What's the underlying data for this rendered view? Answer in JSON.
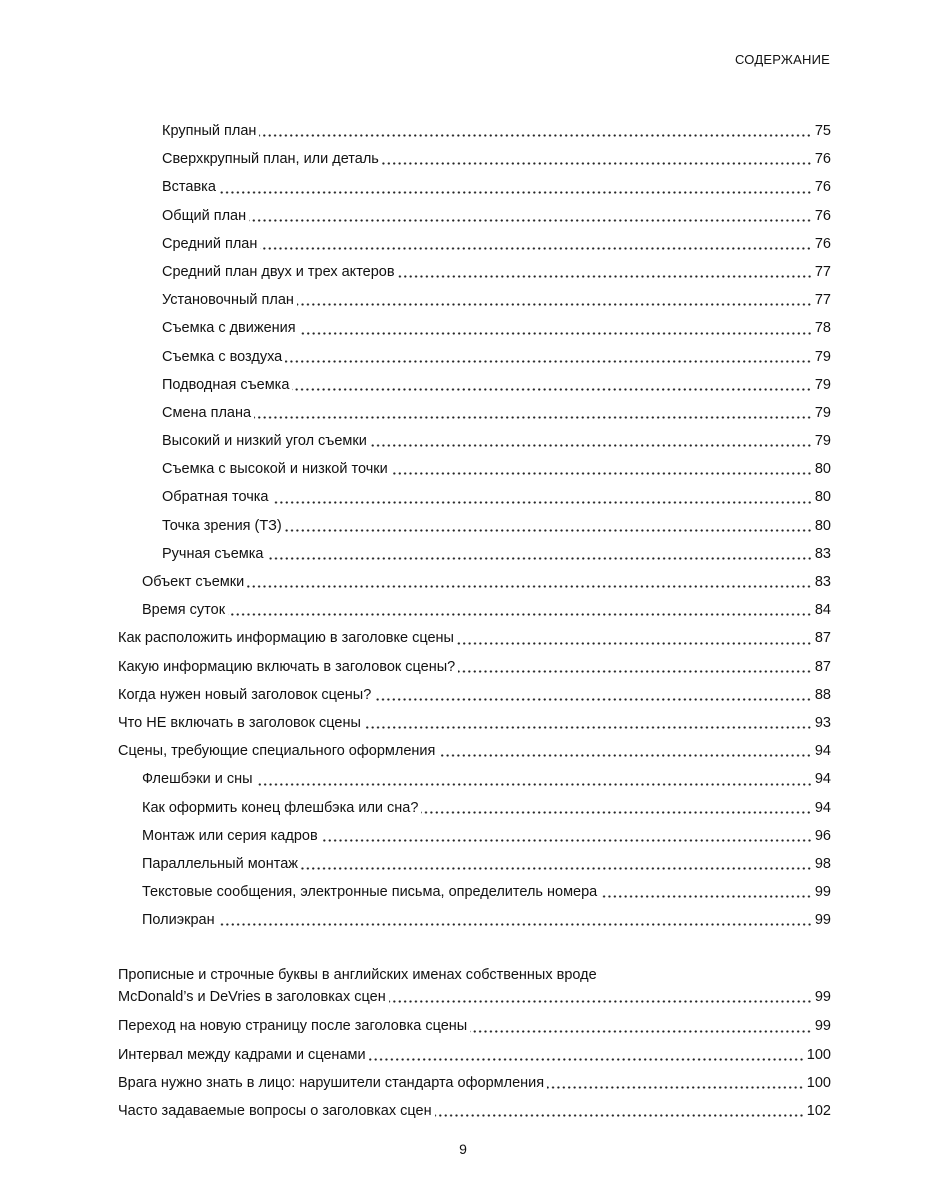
{
  "running_head": "СОДЕРЖАНИЕ",
  "page_number": "9",
  "entries": [
    {
      "level": 2,
      "title": "Крупный план",
      "page": "75"
    },
    {
      "level": 2,
      "title": "Сверхкрупный план, или деталь",
      "page": "76"
    },
    {
      "level": 2,
      "title": "Вставка",
      "page": "76"
    },
    {
      "level": 2,
      "title": "Общий план",
      "page": "76"
    },
    {
      "level": 2,
      "title": "Средний план",
      "page": "76"
    },
    {
      "level": 2,
      "title": "Средний план двух и трех актеров",
      "page": "77"
    },
    {
      "level": 2,
      "title": "Установочный план",
      "page": "77"
    },
    {
      "level": 2,
      "title": "Съемка с движения",
      "page": "78"
    },
    {
      "level": 2,
      "title": "Съемка с воздуха",
      "page": "79"
    },
    {
      "level": 2,
      "title": "Подводная съемка",
      "page": "79"
    },
    {
      "level": 2,
      "title": "Смена плана",
      "page": "79"
    },
    {
      "level": 2,
      "title": "Высокий и низкий угол съемки",
      "page": "79"
    },
    {
      "level": 2,
      "title": "Съемка с высокой и низкой точки",
      "page": "80"
    },
    {
      "level": 2,
      "title": "Обратная точка",
      "page": "80"
    },
    {
      "level": 2,
      "title": "Точка зрения (ТЗ)",
      "page": "80"
    },
    {
      "level": 2,
      "title": "Ручная съемка",
      "page": "83"
    },
    {
      "level": 1,
      "title": "Объект съемки",
      "page": "83"
    },
    {
      "level": 1,
      "title": "Время суток",
      "page": "84"
    },
    {
      "level": 0,
      "title": "Как расположить информацию в заголовке сцены",
      "page": "87"
    },
    {
      "level": 0,
      "title": "Какую информацию включать в заголовок сцены?",
      "page": "87"
    },
    {
      "level": 0,
      "title": "Когда нужен новый заголовок сцены?",
      "page": "88"
    },
    {
      "level": 0,
      "title": "Что НЕ включать в заголовок сцены",
      "page": "93"
    },
    {
      "level": 0,
      "title": "Сцены, требующие специального оформления",
      "page": "94"
    },
    {
      "level": 1,
      "title": "Флешбэки и сны",
      "page": "94"
    },
    {
      "level": 1,
      "title": "Как оформить конец флешбэка или сна?",
      "page": "94"
    },
    {
      "level": 1,
      "title": "Монтаж или серия кадров",
      "page": "96"
    },
    {
      "level": 1,
      "title": "Параллельный монтаж",
      "page": "98"
    },
    {
      "level": 1,
      "title": "Текстовые сообщения, электронные письма, определитель номера",
      "page": "99"
    },
    {
      "level": 1,
      "title": "Полиэкран",
      "page": "99"
    },
    {
      "level": 0,
      "title_line1": "Прописные и строчные буквы в английских именах собственных вроде",
      "title": "McDonald’s и DeVries в заголовках сцен",
      "page": "99"
    },
    {
      "level": 0,
      "title": "Переход на новую страницу после заголовка сцены",
      "page": "99"
    },
    {
      "level": 0,
      "title": "Интервал между кадрами и сценами",
      "page": "100"
    },
    {
      "level": 0,
      "title": "Врага нужно знать в лицо: нарушители стандарта оформления",
      "page": "100"
    },
    {
      "level": 0,
      "title": "Часто задаваемые вопросы о заголовках сцен",
      "page": "102"
    }
  ]
}
